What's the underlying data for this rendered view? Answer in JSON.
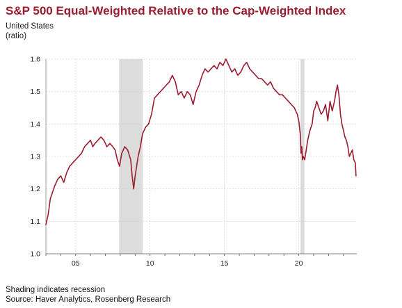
{
  "header": {
    "title": "S&P 500 Equal-Weighted Relative to the Cap-Weighted Index",
    "subtitle_line1": "United States",
    "subtitle_line2": "(ratio)"
  },
  "footer": {
    "note": "Shading indicates recession",
    "source": "Source: Haver Analytics, Rosenberg Research"
  },
  "colors": {
    "line": "#9b1c2e",
    "recession": "#dcdcdc",
    "grid": "#cccccc",
    "title": "#9b1c2e"
  },
  "chart_data": {
    "type": "line",
    "title": "S&P 500 Equal-Weighted Relative to the Cap-Weighted Index",
    "ylabel": "(ratio)",
    "xlabel": "",
    "xlim": [
      2003.0,
      2023.9
    ],
    "ylim": [
      1.0,
      1.6
    ],
    "xticks": [
      {
        "value": 2005,
        "label": "05"
      },
      {
        "value": 2010,
        "label": "10"
      },
      {
        "value": 2015,
        "label": "15"
      },
      {
        "value": 2020,
        "label": "20"
      }
    ],
    "yticks": [
      {
        "value": 1.0,
        "label": "1.0"
      },
      {
        "value": 1.1,
        "label": "1.1"
      },
      {
        "value": 1.2,
        "label": "1.2"
      },
      {
        "value": 1.3,
        "label": "1.3"
      },
      {
        "value": 1.4,
        "label": "1.4"
      },
      {
        "value": 1.5,
        "label": "1.5"
      },
      {
        "value": 1.6,
        "label": "1.6"
      }
    ],
    "grid": true,
    "recessions": [
      [
        2007.92,
        2009.5
      ],
      [
        2020.12,
        2020.38
      ]
    ],
    "series": [
      {
        "x": [
          2003.0,
          2003.15,
          2003.3,
          2003.45,
          2003.6,
          2003.8,
          2004.0,
          2004.2,
          2004.4,
          2004.6,
          2004.8,
          2005.0,
          2005.2,
          2005.4,
          2005.6,
          2005.8,
          2006.0,
          2006.15,
          2006.3,
          2006.5,
          2006.7,
          2006.9,
          2007.1,
          2007.3,
          2007.5,
          2007.65,
          2007.8,
          2007.95,
          2008.1,
          2008.3,
          2008.5,
          2008.7,
          2008.8,
          2008.9,
          2009.0,
          2009.1,
          2009.2,
          2009.35,
          2009.5,
          2009.7,
          2009.9,
          2010.1,
          2010.3,
          2010.5,
          2010.7,
          2010.9,
          2011.1,
          2011.3,
          2011.5,
          2011.7,
          2011.9,
          2012.1,
          2012.3,
          2012.5,
          2012.7,
          2012.9,
          2013.1,
          2013.3,
          2013.5,
          2013.7,
          2013.9,
          2014.1,
          2014.3,
          2014.5,
          2014.7,
          2014.9,
          2015.1,
          2015.3,
          2015.5,
          2015.7,
          2015.9,
          2016.1,
          2016.3,
          2016.5,
          2016.7,
          2016.9,
          2017.1,
          2017.3,
          2017.5,
          2017.7,
          2017.9,
          2018.1,
          2018.3,
          2018.5,
          2018.7,
          2018.9,
          2019.1,
          2019.3,
          2019.5,
          2019.7,
          2019.9,
          2020.0,
          2020.1,
          2020.15,
          2020.2,
          2020.25,
          2020.3,
          2020.4,
          2020.5,
          2020.6,
          2020.75,
          2020.9,
          2021.0,
          2021.1,
          2021.2,
          2021.35,
          2021.5,
          2021.65,
          2021.8,
          2021.95,
          2022.1,
          2022.25,
          2022.4,
          2022.5,
          2022.6,
          2022.7,
          2022.8,
          2022.9,
          2023.0,
          2023.1,
          2023.2,
          2023.3,
          2023.4,
          2023.5,
          2023.6,
          2023.7,
          2023.8,
          2023.85
        ],
        "values": [
          1.09,
          1.12,
          1.17,
          1.19,
          1.21,
          1.23,
          1.24,
          1.22,
          1.25,
          1.27,
          1.28,
          1.29,
          1.3,
          1.31,
          1.33,
          1.34,
          1.35,
          1.33,
          1.34,
          1.35,
          1.36,
          1.35,
          1.33,
          1.34,
          1.33,
          1.32,
          1.29,
          1.27,
          1.31,
          1.33,
          1.32,
          1.29,
          1.24,
          1.2,
          1.24,
          1.27,
          1.3,
          1.33,
          1.37,
          1.39,
          1.4,
          1.43,
          1.48,
          1.49,
          1.5,
          1.51,
          1.52,
          1.53,
          1.55,
          1.53,
          1.49,
          1.5,
          1.48,
          1.5,
          1.49,
          1.46,
          1.5,
          1.52,
          1.55,
          1.57,
          1.56,
          1.57,
          1.58,
          1.57,
          1.59,
          1.58,
          1.6,
          1.58,
          1.56,
          1.57,
          1.55,
          1.56,
          1.58,
          1.59,
          1.57,
          1.56,
          1.55,
          1.54,
          1.54,
          1.53,
          1.52,
          1.53,
          1.51,
          1.5,
          1.49,
          1.49,
          1.48,
          1.47,
          1.46,
          1.45,
          1.43,
          1.41,
          1.37,
          1.31,
          1.33,
          1.29,
          1.3,
          1.29,
          1.32,
          1.35,
          1.38,
          1.4,
          1.44,
          1.45,
          1.47,
          1.45,
          1.43,
          1.44,
          1.46,
          1.41,
          1.47,
          1.44,
          1.47,
          1.5,
          1.52,
          1.49,
          1.43,
          1.4,
          1.38,
          1.36,
          1.35,
          1.33,
          1.3,
          1.31,
          1.32,
          1.29,
          1.28,
          1.24
        ]
      }
    ]
  }
}
